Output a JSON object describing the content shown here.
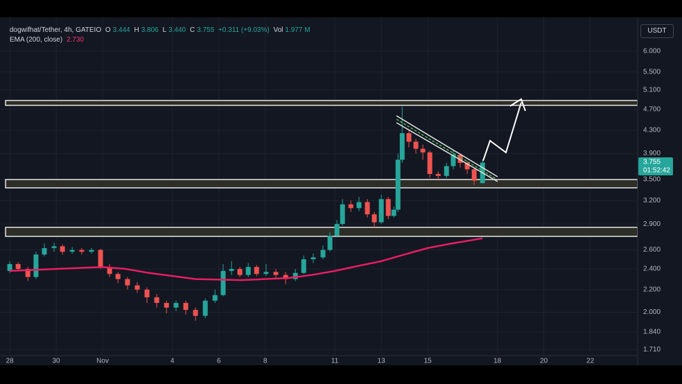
{
  "chart_data": {
    "type": "candlestick",
    "title": "dogwifhat/Tether, 4h, GATEIO",
    "legend": {
      "open_label": "O",
      "open": "3.444",
      "high_label": "H",
      "high": "3.806",
      "low_label": "L",
      "low": "3.440",
      "close_label": "C",
      "close": "3.755",
      "change": "+0.311 (+9.03%)",
      "volume_label": "Vol",
      "volume": "1.977 M"
    },
    "indicator": {
      "name": "EMA (200, close)",
      "value": "2.730",
      "color": "#e91e63",
      "x": [
        0,
        2,
        4,
        5,
        6,
        8,
        10,
        12,
        13,
        14,
        15,
        16,
        17,
        18,
        19,
        20.36
      ],
      "values": [
        2.38,
        2.4,
        2.42,
        2.4,
        2.36,
        2.3,
        2.29,
        2.31,
        2.34,
        2.38,
        2.43,
        2.48,
        2.55,
        2.62,
        2.67,
        2.73
      ]
    },
    "currency": "USDT",
    "last_price": "3.755",
    "countdown": "01:52:42",
    "up_color": "#26a69a",
    "down_color": "#ef5350",
    "log_scale": true,
    "grid": true,
    "x": [
      0,
      0.36,
      0.78,
      1.13,
      1.49,
      1.91,
      2.27,
      2.69,
      3.1,
      3.52,
      3.91,
      4.3,
      4.66,
      5.07,
      5.49,
      5.91,
      6.33,
      6.75,
      7.16,
      7.58,
      8,
      8.42,
      8.84,
      9.19,
      9.55,
      9.91,
      10.27,
      10.63,
      11.04,
      11.46,
      11.88,
      12.3,
      12.66,
      13.07,
      13.49,
      13.79,
      14.09,
      14.33,
      14.69,
      15.04,
      15.4,
      15.7,
      16,
      16.3,
      16.54,
      16.72,
      16.9,
      17.19,
      17.49,
      17.79,
      18.09,
      18.45,
      18.81,
      19.1,
      19.4,
      19.7,
      20,
      20.36
    ],
    "open": [
      2.38,
      2.45,
      2.4,
      2.32,
      2.55,
      2.62,
      2.64,
      2.58,
      2.6,
      2.58,
      2.6,
      2.42,
      2.35,
      2.3,
      2.24,
      2.2,
      2.13,
      2.08,
      2.04,
      2.08,
      2.02,
      1.97,
      2.1,
      2.15,
      2.38,
      2.4,
      2.34,
      2.42,
      2.35,
      2.37,
      2.34,
      2.3,
      2.36,
      2.5,
      2.52,
      2.6,
      2.76,
      2.9,
      3.15,
      3.1,
      3.18,
      3.02,
      2.92,
      3.22,
      3.0,
      3.08,
      3.8,
      4.25,
      4.1,
      3.98,
      3.92,
      3.58,
      3.55,
      3.7,
      3.88,
      3.75,
      3.65,
      3.444
    ],
    "high": [
      2.48,
      2.47,
      2.42,
      2.58,
      2.67,
      2.68,
      2.66,
      2.63,
      2.62,
      2.62,
      2.61,
      2.45,
      2.37,
      2.32,
      2.27,
      2.22,
      2.16,
      2.1,
      2.1,
      2.1,
      2.04,
      2.12,
      2.2,
      2.45,
      2.48,
      2.42,
      2.46,
      2.44,
      2.45,
      2.4,
      2.37,
      2.4,
      2.54,
      2.56,
      2.65,
      2.8,
      2.95,
      3.22,
      3.2,
      3.25,
      3.22,
      3.05,
      3.28,
      3.25,
      3.12,
      3.9,
      4.75,
      4.3,
      4.15,
      4.05,
      3.95,
      3.62,
      3.75,
      3.95,
      3.9,
      3.78,
      3.68,
      3.806
    ],
    "low": [
      2.36,
      2.38,
      2.28,
      2.3,
      2.53,
      2.58,
      2.55,
      2.56,
      2.55,
      2.56,
      2.4,
      2.32,
      2.26,
      2.2,
      2.17,
      2.08,
      2.04,
      1.99,
      2.01,
      1.98,
      1.93,
      1.95,
      2.08,
      2.14,
      2.34,
      2.32,
      2.32,
      2.33,
      2.33,
      2.3,
      2.25,
      2.28,
      2.35,
      2.46,
      2.5,
      2.58,
      2.74,
      2.88,
      3.05,
      3.06,
      2.98,
      2.86,
      2.9,
      2.96,
      2.98,
      3.05,
      3.75,
      4.0,
      3.9,
      3.8,
      3.52,
      3.48,
      3.52,
      3.65,
      3.68,
      3.58,
      3.42,
      3.44
    ],
    "close": [
      2.45,
      2.4,
      2.32,
      2.55,
      2.62,
      2.64,
      2.58,
      2.6,
      2.58,
      2.6,
      2.42,
      2.35,
      2.3,
      2.24,
      2.2,
      2.13,
      2.08,
      2.04,
      2.08,
      2.02,
      1.97,
      2.1,
      2.15,
      2.38,
      2.4,
      2.34,
      2.42,
      2.35,
      2.37,
      2.34,
      2.3,
      2.36,
      2.5,
      2.52,
      2.6,
      2.76,
      2.9,
      3.15,
      3.1,
      3.18,
      3.02,
      2.92,
      3.22,
      3.0,
      3.08,
      3.8,
      4.25,
      4.1,
      3.98,
      3.92,
      3.58,
      3.55,
      3.7,
      3.88,
      3.75,
      3.65,
      3.48,
      3.755
    ],
    "ylim": [
      1.6,
      6.92
    ],
    "yticks": [
      {
        "value": 1.71,
        "label": "1.710"
      },
      {
        "value": 1.84,
        "label": "1.840"
      },
      {
        "value": 2,
        "label": "2.000"
      },
      {
        "value": 2.2,
        "label": "2.200"
      },
      {
        "value": 2.4,
        "label": "2.400"
      },
      {
        "value": 2.6,
        "label": "2.600"
      },
      {
        "value": 2.9,
        "label": "2.900"
      },
      {
        "value": 3.2,
        "label": "3.200"
      },
      {
        "value": 3.5,
        "label": "3.500"
      },
      {
        "value": 3.9,
        "label": "3.900"
      },
      {
        "value": 4.3,
        "label": "4.300"
      },
      {
        "value": 4.7,
        "label": "4.700"
      },
      {
        "value": 5.1,
        "label": "5.100"
      },
      {
        "value": 5.5,
        "label": "5.500"
      },
      {
        "value": 6,
        "label": "6.000"
      }
    ],
    "xlim": [
      -0.42,
      27.04
    ],
    "xticks": [
      {
        "value": 0,
        "label": "28"
      },
      {
        "value": 2,
        "label": "30"
      },
      {
        "value": 4,
        "label": "Nov"
      },
      {
        "value": 7,
        "label": "4"
      },
      {
        "value": 9,
        "label": "6"
      },
      {
        "value": 11,
        "label": "8"
      },
      {
        "value": 14,
        "label": "11"
      },
      {
        "value": 16,
        "label": "13"
      },
      {
        "value": 18,
        "label": "15"
      },
      {
        "value": 21,
        "label": "18"
      },
      {
        "value": 23,
        "label": "20"
      },
      {
        "value": 25,
        "label": "22"
      }
    ]
  }
}
